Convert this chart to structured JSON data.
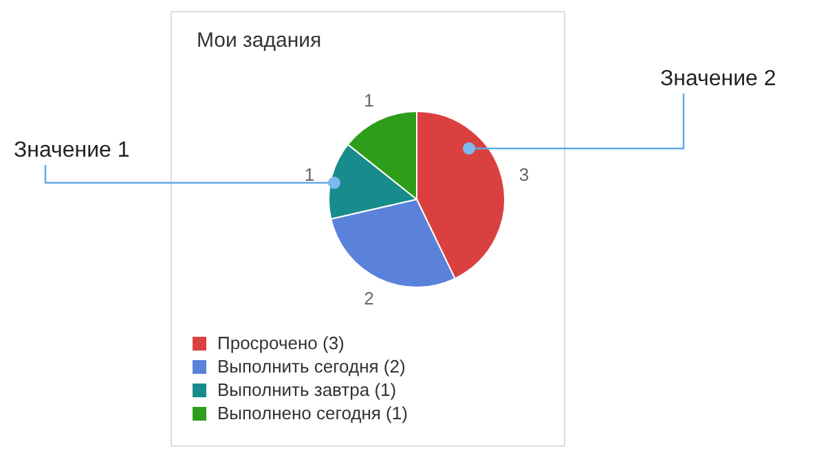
{
  "chart_data": {
    "type": "pie",
    "title": "Мои задания",
    "categories": [
      "Просрочено (3)",
      "Выполнить сегодня (2)",
      "Выполнить завтра (1)",
      "Выполнено сегодня (1)"
    ],
    "values": [
      3,
      2,
      1,
      1
    ],
    "colors": [
      "#db4040",
      "#5a82db",
      "#188c8c",
      "#2e9e1a"
    ],
    "data_labels": true,
    "legend": "bottom left",
    "annotations": [
      "Значение 1",
      "Значение 2"
    ]
  }
}
